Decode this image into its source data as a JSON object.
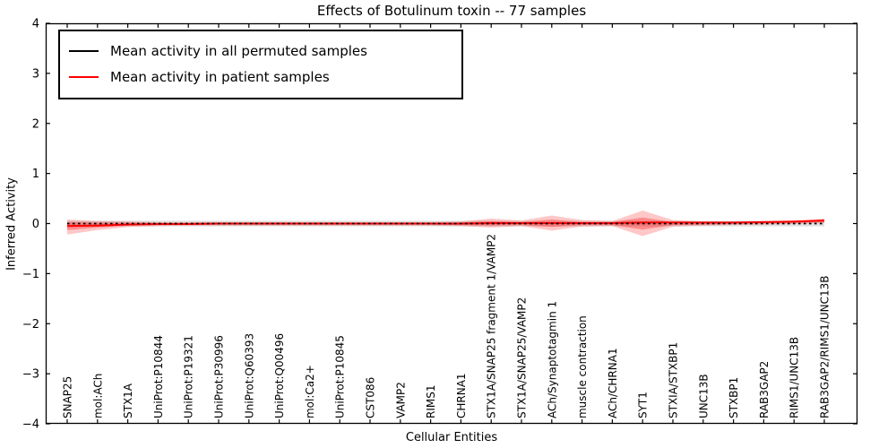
{
  "title": "Effects of Botulinum toxin -- 77 samples",
  "legend": {
    "items": [
      {
        "label": "Mean activity in all permuted samples",
        "color": "#000000"
      },
      {
        "label": "Mean activity in patient samples",
        "color": "#ff0000"
      }
    ]
  },
  "chart_data": {
    "type": "line",
    "title": "Effects of Botulinum toxin -- 77 samples",
    "xlabel": "Cellular Entities",
    "ylabel": "Inferred Activity",
    "ylim": [
      -4,
      4
    ],
    "y_ticks": [
      -4,
      -3,
      -2,
      -1,
      0,
      1,
      2,
      3,
      4
    ],
    "y_tick_labels": [
      "−4",
      "−3",
      "−2",
      "−1",
      "0",
      "1",
      "2",
      "3",
      "4"
    ],
    "grid": false,
    "legend_position": "upper left",
    "categories": [
      "SNAP25",
      "mol:ACh",
      "STX1A",
      "UniProt:P10844",
      "UniProt:P19321",
      "UniProt:P30996",
      "UniProt:Q60393",
      "UniProt:Q00496",
      "mol:Ca2+",
      "UniProt:P10845",
      "CST086",
      "VAMP2",
      "RIMS1",
      "CHRNA1",
      "STX1A/SNAP25 fragment 1/VAMP2",
      "STX1A/SNAP25/VAMP2",
      "ACh/Synaptotagmin 1",
      "muscle contraction",
      "ACh/CHRNA1",
      "SYT1",
      "STXIA/STXBP1",
      "UNC13B",
      "STXBP1",
      "RAB3GAP2",
      "RIMS1/UNC13B",
      "RAB3GAP2/RIMS1/UNC13B"
    ],
    "series": [
      {
        "name": "Mean activity in all permuted samples",
        "color": "#000000",
        "style": "dashed",
        "values": [
          0,
          0,
          0,
          0,
          0,
          0,
          0,
          0,
          0,
          0,
          0,
          0,
          0,
          0,
          0,
          0,
          0,
          0,
          0,
          0,
          0,
          0,
          0,
          0,
          0,
          0
        ]
      },
      {
        "name": "Mean activity in patient samples",
        "color": "#ff0000",
        "style": "solid",
        "values": [
          -0.05,
          -0.04,
          -0.02,
          -0.01,
          -0.01,
          0,
          0,
          0,
          0,
          0,
          0,
          0,
          0,
          0,
          0.01,
          0.01,
          0.01,
          0.01,
          0.01,
          0.02,
          0.02,
          0.02,
          0.02,
          0.03,
          0.04,
          0.06
        ]
      }
    ],
    "bands": [
      {
        "name": "permuted-range",
        "color": "#000000",
        "opacity": 0.12,
        "high": [
          0.055,
          0.055,
          0.055,
          0.055,
          0.055,
          0.055,
          0.055,
          0.055,
          0.055,
          0.055,
          0.055,
          0.055,
          0.055,
          0.055,
          0.055,
          0.055,
          0.055,
          0.055,
          0.055,
          0.055,
          0.055,
          0.055,
          0.055,
          0.055,
          0.055,
          0.055
        ],
        "low": [
          -0.055,
          -0.055,
          -0.055,
          -0.055,
          -0.055,
          -0.055,
          -0.055,
          -0.055,
          -0.055,
          -0.055,
          -0.055,
          -0.055,
          -0.055,
          -0.055,
          -0.055,
          -0.055,
          -0.055,
          -0.055,
          -0.055,
          -0.055,
          -0.055,
          -0.055,
          -0.055,
          -0.055,
          -0.055,
          -0.055
        ]
      },
      {
        "name": "patient-range-outer",
        "color": "#ff0000",
        "opacity": 0.22,
        "high": [
          0.08,
          0.05,
          0.04,
          0.03,
          0.03,
          0.03,
          0.03,
          0.03,
          0.03,
          0.03,
          0.03,
          0.03,
          0.03,
          0.04,
          0.1,
          0.06,
          0.16,
          0.07,
          0.05,
          0.26,
          0.07,
          0.04,
          0.04,
          0.04,
          0.05,
          0.1
        ],
        "low": [
          -0.22,
          -0.13,
          -0.07,
          -0.05,
          -0.04,
          -0.04,
          -0.04,
          -0.04,
          -0.04,
          -0.04,
          -0.04,
          -0.04,
          -0.04,
          -0.05,
          -0.08,
          -0.05,
          -0.14,
          -0.06,
          -0.05,
          -0.25,
          -0.06,
          -0.04,
          -0.03,
          -0.02,
          -0.01,
          0.01
        ]
      },
      {
        "name": "patient-range-inner",
        "color": "#ff0000",
        "opacity": 0.3,
        "high": [
          0.03,
          0.02,
          0.02,
          0.01,
          0.01,
          0.01,
          0.01,
          0.01,
          0.01,
          0.01,
          0.01,
          0.01,
          0.01,
          0.02,
          0.05,
          0.03,
          0.08,
          0.03,
          0.03,
          0.12,
          0.03,
          0.02,
          0.02,
          0.03,
          0.03,
          0.08
        ],
        "low": [
          -0.13,
          -0.08,
          -0.04,
          -0.03,
          -0.02,
          -0.02,
          -0.02,
          -0.02,
          -0.02,
          -0.02,
          -0.02,
          -0.02,
          -0.02,
          -0.03,
          -0.04,
          -0.03,
          -0.07,
          -0.03,
          -0.03,
          -0.12,
          -0.03,
          -0.02,
          -0.01,
          0.0,
          0.01,
          0.03
        ]
      }
    ]
  }
}
